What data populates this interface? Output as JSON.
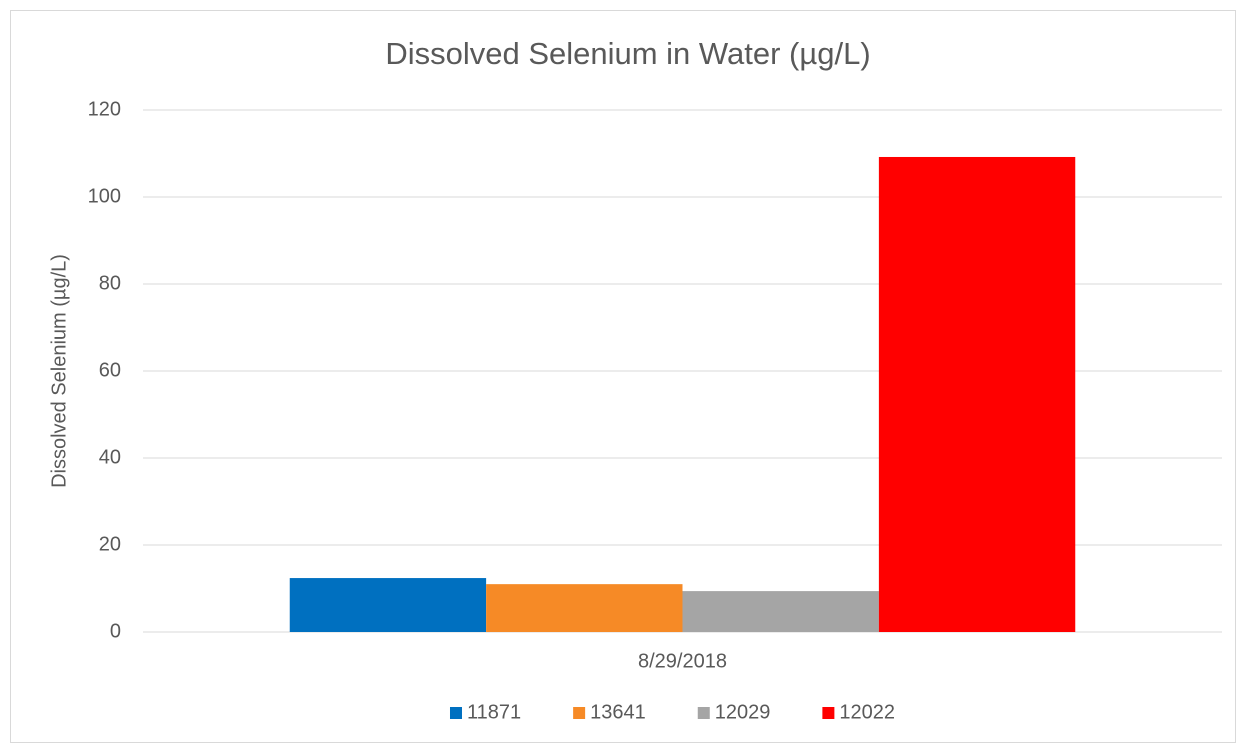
{
  "chart_data": {
    "type": "bar",
    "title": "Dissolved Selenium in Water (µg/L)",
    "y_label": "Dissolved Selenium (µg/L)",
    "categories": [
      "8/29/2018"
    ],
    "series": [
      {
        "name": "11871",
        "color": "#0070c0",
        "values": [
          12.4
        ]
      },
      {
        "name": "13641",
        "color": "#f68a26",
        "values": [
          11.0
        ]
      },
      {
        "name": "12029",
        "color": "#a5a5a5",
        "values": [
          9.4
        ]
      },
      {
        "name": "12022",
        "color": "#ff0000",
        "values": [
          109.2
        ]
      }
    ],
    "ylim": [
      0,
      120
    ],
    "yticks": [
      0,
      20,
      40,
      60,
      80,
      100,
      120
    ],
    "grid": true,
    "legend": "bottom"
  }
}
